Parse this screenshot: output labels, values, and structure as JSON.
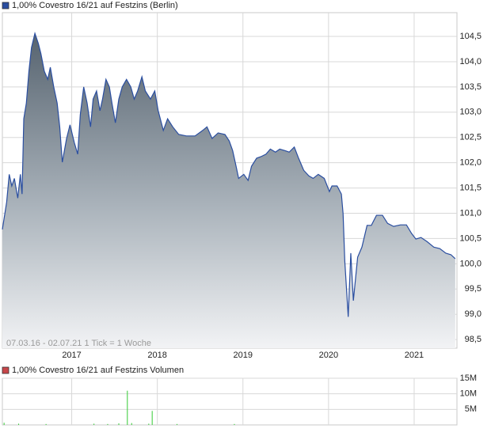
{
  "chart_data": [
    {
      "type": "area",
      "series": [
        {
          "name": "1,00% Covestro 16/21 auf Festzins (Berlin)",
          "color": "#2a4ea0",
          "values": [
            100.68,
            101.22,
            101.77,
            101.54,
            101.69,
            101.3,
            101.77,
            101.38,
            102.87,
            103.18,
            103.81,
            104.28,
            104.56,
            104.36,
            104.16,
            103.81,
            103.65,
            103.89,
            103.5,
            103.18,
            102.71,
            102.01,
            102.48,
            102.75,
            102.4,
            102.17,
            102.95,
            103.5,
            103.18,
            102.71,
            103.26,
            103.42,
            103.03,
            103.26,
            103.65,
            103.5,
            103.18,
            102.79,
            103.26,
            103.5,
            103.65,
            103.5,
            103.26,
            103.42,
            103.7,
            103.42,
            103.26,
            103.42,
            103.03,
            102.64,
            102.87,
            102.71,
            102.56,
            102.53,
            102.53,
            102.64,
            102.71,
            102.48,
            102.59,
            102.56,
            102.43,
            102.24,
            101.93,
            101.69,
            101.77,
            101.65,
            101.93,
            102.09,
            102.12,
            102.17,
            102.27,
            102.21,
            102.27,
            102.24,
            102.21,
            102.31,
            102.09,
            101.85,
            101.74,
            101.69,
            101.77,
            101.69,
            101.43,
            101.54,
            101.54,
            101.38,
            100.99,
            100.05,
            98.95,
            100.21,
            99.27,
            100.13,
            100.33,
            100.76,
            100.76,
            100.96,
            100.96,
            100.8,
            100.74,
            100.77,
            100.77,
            100.6,
            100.49,
            100.52,
            100.44,
            100.33,
            100.3,
            100.21,
            100.18,
            100.1
          ]
        }
      ],
      "x": [
        2016.19,
        2016.24,
        2016.27,
        2016.3,
        2016.33,
        2016.37,
        2016.4,
        2016.42,
        2016.44,
        2016.47,
        2016.5,
        2016.53,
        2016.57,
        2016.61,
        2016.64,
        2016.68,
        2016.72,
        2016.75,
        2016.79,
        2016.83,
        2016.86,
        2016.89,
        2016.94,
        2016.98,
        2017.03,
        2017.07,
        2017.1,
        2017.14,
        2017.18,
        2017.22,
        2017.25,
        2017.29,
        2017.33,
        2017.36,
        2017.4,
        2017.44,
        2017.47,
        2017.51,
        2017.55,
        2017.59,
        2017.64,
        2017.69,
        2017.73,
        2017.77,
        2017.82,
        2017.86,
        2017.92,
        2017.97,
        2018.01,
        2018.07,
        2018.12,
        2018.18,
        2018.25,
        2018.34,
        2018.44,
        2018.53,
        2018.58,
        2018.64,
        2018.71,
        2018.79,
        2018.84,
        2018.88,
        2018.92,
        2018.95,
        2019.01,
        2019.06,
        2019.1,
        2019.16,
        2019.21,
        2019.27,
        2019.32,
        2019.38,
        2019.43,
        2019.49,
        2019.54,
        2019.6,
        2019.65,
        2019.71,
        2019.77,
        2019.82,
        2019.88,
        2019.95,
        2020.01,
        2020.04,
        2020.1,
        2020.15,
        2020.17,
        2020.19,
        2020.23,
        2020.26,
        2020.29,
        2020.34,
        2020.39,
        2020.45,
        2020.5,
        2020.56,
        2020.63,
        2020.69,
        2020.76,
        2020.84,
        2020.91,
        2020.97,
        2021.02,
        2021.08,
        2021.15,
        2021.23,
        2021.3,
        2021.37,
        2021.43,
        2021.48
      ],
      "xlim": [
        2016.19,
        2021.5
      ],
      "xticks": [
        2017,
        2018,
        2019,
        2020,
        2021
      ],
      "ylim": [
        98.33,
        104.97
      ],
      "yticks": [
        {
          "value": 98.5,
          "label": "98,5"
        },
        {
          "value": 99,
          "label": "99,0"
        },
        {
          "value": 99.5,
          "label": "99,5"
        },
        {
          "value": 100,
          "label": "100,0"
        },
        {
          "value": 100.5,
          "label": "100,5"
        },
        {
          "value": 101,
          "label": "101,0"
        },
        {
          "value": 101.5,
          "label": "101,5"
        },
        {
          "value": 102,
          "label": "102,0"
        },
        {
          "value": 102.5,
          "label": "102,5"
        },
        {
          "value": 103,
          "label": "103,0"
        },
        {
          "value": 103.5,
          "label": "103,5"
        },
        {
          "value": 104,
          "label": "104,0"
        },
        {
          "value": 104.5,
          "label": "104,5"
        }
      ],
      "note": "07.03.16 - 02.07.21   1 Tick = 1 Woche",
      "grid": true
    },
    {
      "type": "bar",
      "series": [
        {
          "name": "1,00% Covestro 16/21 auf Festzins Volumen",
          "color": "#33cc33",
          "legend_color": "#c8474a",
          "values": [
            700000,
            400000,
            300000,
            400000,
            300000,
            500000,
            11000000,
            600000,
            400000,
            4500000,
            300000,
            300000
          ]
        }
      ],
      "x": [
        2016.21,
        2016.38,
        2016.7,
        2017.26,
        2017.42,
        2017.55,
        2017.65,
        2017.7,
        2017.9,
        2017.94,
        2018.23,
        2018.9
      ],
      "xlim": [
        2016.19,
        2021.5
      ],
      "ylim": [
        0,
        15000000
      ],
      "yticks": [
        {
          "value": 5000000,
          "label": "5M"
        },
        {
          "value": 10000000,
          "label": "10M"
        },
        {
          "value": 15000000,
          "label": "15M"
        }
      ],
      "grid": true
    }
  ]
}
